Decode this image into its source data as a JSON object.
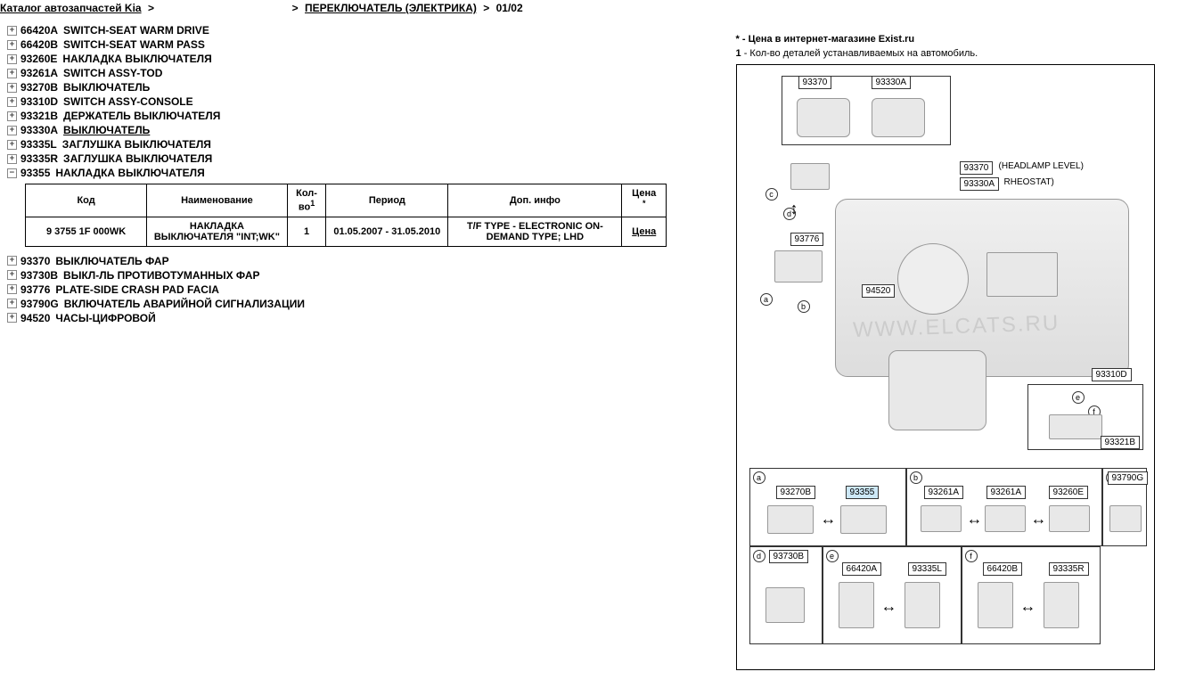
{
  "breadcrumb": {
    "root": "Каталог автозапчастей Kia",
    "mid": "",
    "section": "ПЕРЕКЛЮЧАТЕЛЬ (ЭЛЕКТРИКА)",
    "page": "01/02"
  },
  "parts_before": [
    {
      "code": "66420A",
      "name": "SWITCH-SEAT WARM DRIVE"
    },
    {
      "code": "66420B",
      "name": "SWITCH-SEAT WARM PASS"
    },
    {
      "code": "93260E",
      "name": "НАКЛАДКА ВЫКЛЮЧАТЕЛЯ"
    },
    {
      "code": "93261A",
      "name": "SWITCH ASSY-TOD"
    },
    {
      "code": "93270B",
      "name": "ВЫКЛЮЧАТЕЛЬ"
    },
    {
      "code": "93310D",
      "name": "SWITCH ASSY-CONSOLE"
    },
    {
      "code": "93321B",
      "name": "ДЕРЖАТЕЛЬ ВЫКЛЮЧАТЕЛЯ"
    },
    {
      "code": "93330A",
      "name": "ВЫКЛЮЧАТЕЛЬ",
      "underlined": true
    },
    {
      "code": "93335L",
      "name": "ЗАГЛУШКА ВЫКЛЮЧАТЕЛЯ"
    },
    {
      "code": "93335R",
      "name": "ЗАГЛУШКА ВЫКЛЮЧАТЕЛЯ"
    }
  ],
  "expanded": {
    "code": "93355",
    "name": "НАКЛАДКА ВЫКЛЮЧАТЕЛЯ"
  },
  "table": {
    "headers": {
      "code": "Код",
      "name": "Наименование",
      "qty": "Кол-во",
      "qty_sup": "1",
      "period": "Период",
      "info": "Доп. инфо",
      "price": "Цена",
      "price_sup": "*"
    },
    "row": {
      "code": "9 3755 1F 000WK",
      "name": "НАКЛАДКА ВЫКЛЮЧАТЕЛЯ \"INT;WK\"",
      "qty": "1",
      "period": "01.05.2007 - 31.05.2010",
      "info": "T/F TYPE - ELECTRONIC ON-DEMAND TYPE; LHD",
      "price": "Цена"
    }
  },
  "parts_after": [
    {
      "code": "93370",
      "name": "ВЫКЛЮЧАТЕЛЬ ФАР"
    },
    {
      "code": "93730B",
      "name": "ВЫКЛ-ЛЬ ПРОТИВОТУМАННЫХ ФАР"
    },
    {
      "code": "93776",
      "name": "PLATE-SIDE CRASH PAD FACIA"
    },
    {
      "code": "93790G",
      "name": "ВКЛЮЧАТЕЛЬ АВАРИЙНОЙ СИГНАЛИЗАЦИИ"
    },
    {
      "code": "94520",
      "name": "ЧАСЫ-ЦИФРОВОЙ"
    }
  ],
  "notes": {
    "star": "* - Цена в интернет-магазине Exist.ru",
    "one": "- Кол-во деталей устанавливаемых на автомобиль."
  },
  "diagram": {
    "top_labels": {
      "l1": "93370",
      "l2": "93330A"
    },
    "side_labels": {
      "s1": "93370",
      "s1t": "(HEADLAMP LEVEL)",
      "s2": "93330A",
      "s2t": "RHEOSTAT)"
    },
    "mid_labels": {
      "m1": "93776",
      "m2": "94520",
      "m3": "93310D",
      "m4": "93321B"
    },
    "watermark": "WWW.ELCATS.RU",
    "row_a": {
      "l1": "93270B",
      "l2": "93355"
    },
    "row_b": {
      "l1": "93261A",
      "l2": "93261A",
      "l3": "93260E"
    },
    "row_c": {
      "l1": "93790G"
    },
    "row_d": {
      "l1": "93730B"
    },
    "row_e": {
      "l1": "66420A",
      "l2": "93335L"
    },
    "row_f": {
      "l1": "66420B",
      "l2": "93335R"
    },
    "circles": {
      "a": "a",
      "b": "b",
      "c": "c",
      "d": "d",
      "e": "e",
      "f": "f"
    }
  }
}
